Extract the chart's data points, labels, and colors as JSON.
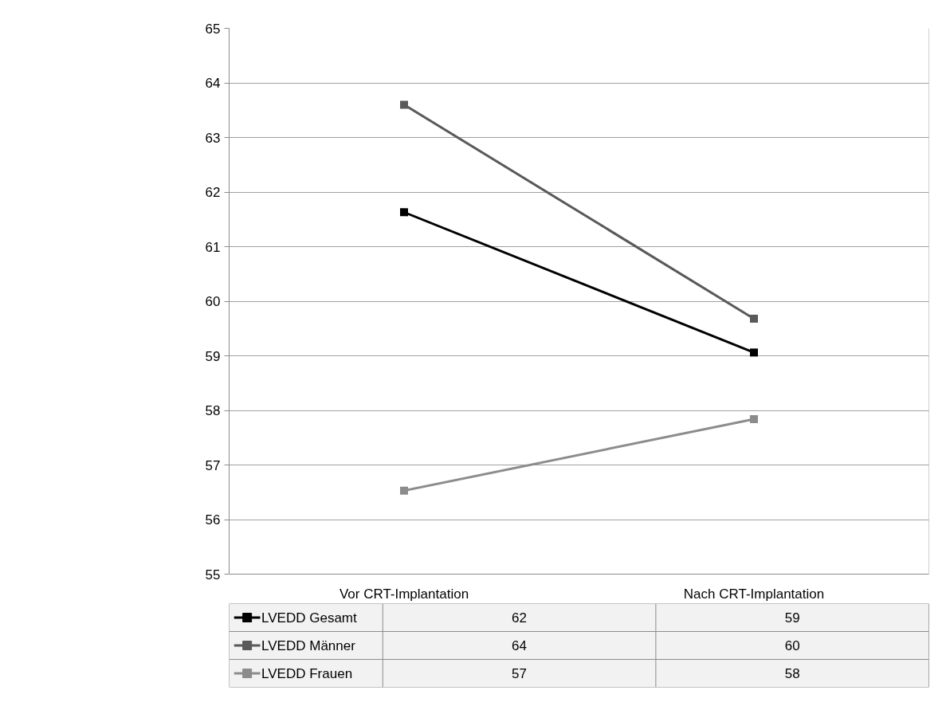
{
  "chart_data": {
    "type": "line",
    "categories": [
      "Vor CRT-Implantation",
      "Nach CRT-Implantation"
    ],
    "series": [
      {
        "name": "LVEDD Gesamt",
        "color": "#000000",
        "values": [
          61.63,
          59.06
        ],
        "value_labels": [
          "62",
          "59"
        ],
        "marker": "square"
      },
      {
        "name": "LVEDD Männer",
        "color": "#595959",
        "values": [
          63.6,
          59.68
        ],
        "value_labels": [
          "64",
          "60"
        ],
        "marker": "square"
      },
      {
        "name": "LVEDD Frauen",
        "color": "#8c8c8c",
        "values": [
          56.53,
          57.84
        ],
        "value_labels": [
          "57",
          "58"
        ],
        "marker": "square"
      }
    ],
    "ylim": [
      55,
      65
    ],
    "yticks": [
      55,
      56,
      57,
      58,
      59,
      60,
      61,
      62,
      63,
      64,
      65
    ],
    "grid": "y",
    "legend": "bottom",
    "line_style": "solid"
  }
}
